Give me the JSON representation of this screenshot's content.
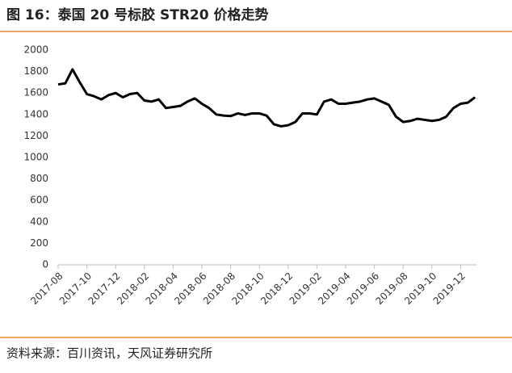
{
  "chart_data": {
    "type": "line",
    "title": "图 16：泰国 20 号标胶 STR20 价格走势",
    "source": "资料来源：百川资讯，天风证券研究所",
    "categories": [
      "2017-08",
      null,
      null,
      null,
      "2017-10",
      null,
      null,
      null,
      "2017-12",
      null,
      null,
      null,
      "2018-02",
      null,
      null,
      null,
      "2018-04",
      null,
      null,
      null,
      "2018-06",
      null,
      null,
      null,
      "2018-08",
      null,
      null,
      null,
      "2018-10",
      null,
      null,
      null,
      "2018-12",
      null,
      null,
      null,
      "2019-02",
      null,
      null,
      null,
      "2019-04",
      null,
      null,
      null,
      "2019-06",
      null,
      null,
      null,
      "2019-08",
      null,
      null,
      null,
      "2019-10",
      null,
      null,
      null,
      "2019-12",
      null,
      null
    ],
    "values": [
      1680,
      1690,
      1820,
      1700,
      1590,
      1570,
      1540,
      1580,
      1600,
      1560,
      1590,
      1600,
      1530,
      1520,
      1540,
      1460,
      1470,
      1480,
      1520,
      1550,
      1500,
      1460,
      1400,
      1390,
      1385,
      1410,
      1395,
      1410,
      1410,
      1390,
      1310,
      1290,
      1300,
      1330,
      1410,
      1410,
      1400,
      1520,
      1540,
      1500,
      1500,
      1510,
      1520,
      1540,
      1550,
      1520,
      1490,
      1380,
      1330,
      1340,
      1360,
      1350,
      1340,
      1350,
      1380,
      1460,
      1500,
      1510,
      1560
    ],
    "color": "#000000",
    "ylim": [
      0,
      2000
    ],
    "yticks": [
      0,
      200,
      400,
      600,
      800,
      1000,
      1200,
      1400,
      1600,
      1800,
      2000
    ]
  }
}
